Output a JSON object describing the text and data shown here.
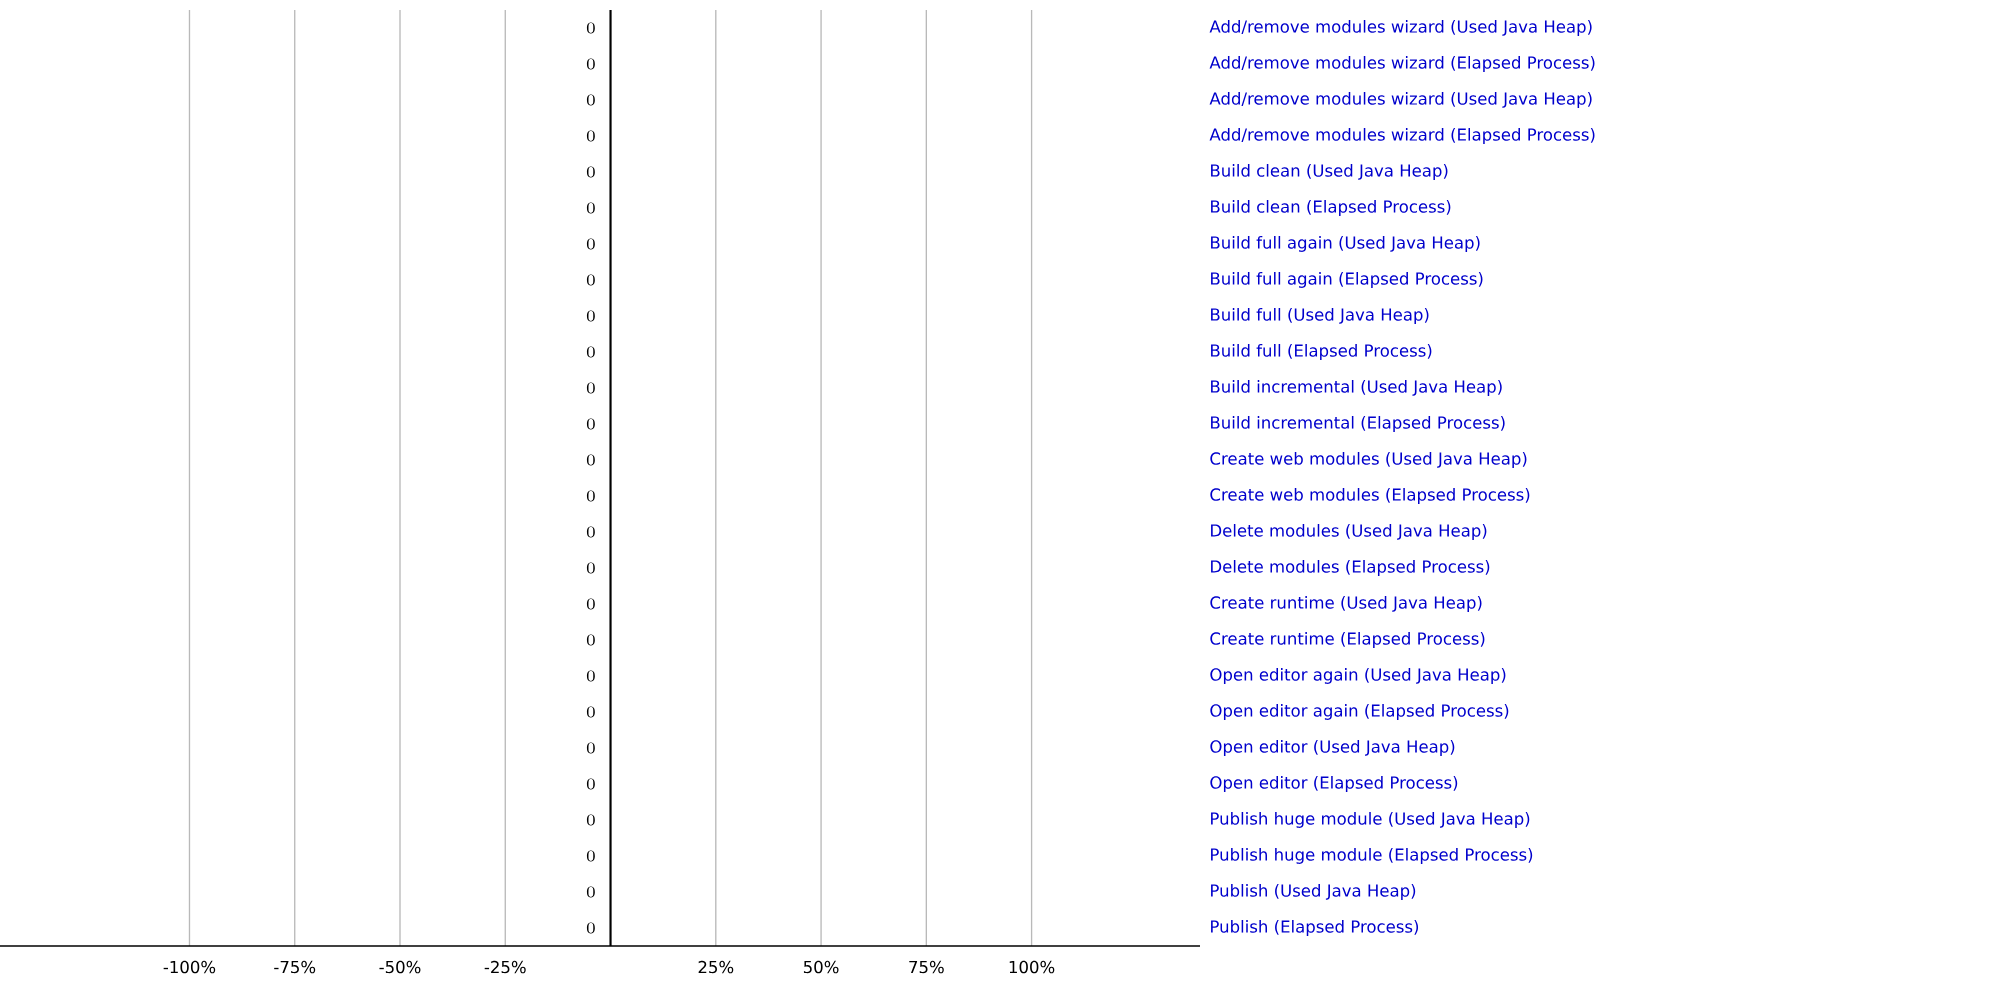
{
  "chart_data": {
    "type": "bar",
    "orientation": "horizontal",
    "categories": [
      "Add/remove modules wizard (Used Java Heap)",
      "Add/remove modules wizard (Elapsed Process)",
      "Add/remove modules wizard (Used Java Heap)",
      "Add/remove modules wizard (Elapsed Process)",
      "Build clean (Used Java Heap)",
      "Build clean (Elapsed Process)",
      "Build full again (Used Java Heap)",
      "Build full again (Elapsed Process)",
      "Build full (Used Java Heap)",
      "Build full (Elapsed Process)",
      "Build incremental (Used Java Heap)",
      "Build incremental (Elapsed Process)",
      "Create web modules (Used Java Heap)",
      "Create web modules (Elapsed Process)",
      "Delete modules (Used Java Heap)",
      "Delete modules (Elapsed Process)",
      "Create runtime (Used Java Heap)",
      "Create runtime (Elapsed Process)",
      "Open editor again (Used Java Heap)",
      "Open editor again (Elapsed Process)",
      "Open editor (Used Java Heap)",
      "Open editor (Elapsed Process)",
      "Publish huge module (Used Java Heap)",
      "Publish huge module (Elapsed Process)",
      "Publish (Used Java Heap)",
      "Publish (Elapsed Process)"
    ],
    "values": [
      0,
      0,
      0,
      0,
      0,
      0,
      0,
      0,
      0,
      0,
      0,
      0,
      0,
      0,
      0,
      0,
      0,
      0,
      0,
      0,
      0,
      0,
      0,
      0,
      0,
      0
    ],
    "data_labels": true,
    "xlim": [
      -145,
      140
    ],
    "xticks": [
      {
        "value": -100,
        "label": "-100%"
      },
      {
        "value": -75,
        "label": "-75%"
      },
      {
        "value": -50,
        "label": "-50%"
      },
      {
        "value": -25,
        "label": "-25%"
      },
      {
        "value": 0,
        "label": null
      },
      {
        "value": 25,
        "label": "25%"
      },
      {
        "value": 50,
        "label": "50%"
      },
      {
        "value": 75,
        "label": "75%"
      },
      {
        "value": 100,
        "label": "100%"
      }
    ],
    "grid": "x"
  }
}
